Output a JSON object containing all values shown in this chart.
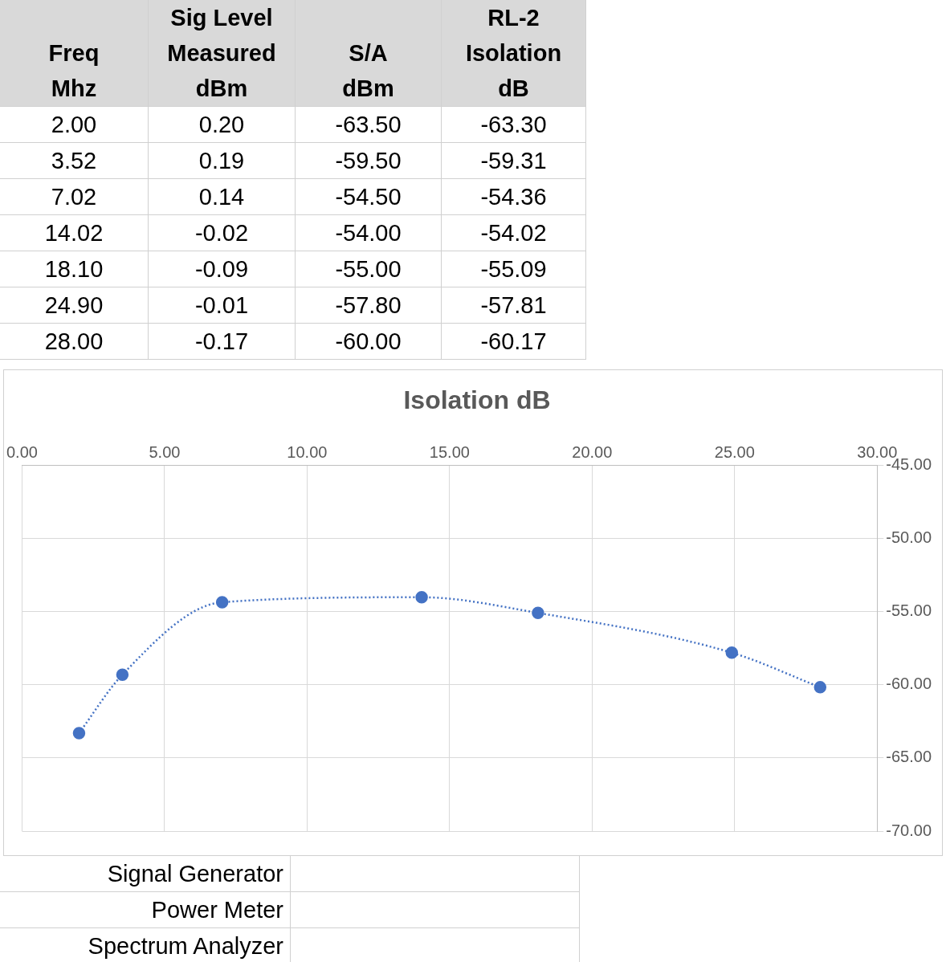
{
  "chart_data": [
    {
      "type": "other",
      "annotations": [
        "Freq\nMhz",
        "Sig Level\nMeasured\ndBm",
        "S/A\ndBm",
        "RL-2\nIsolation\ndB",
        "2.00",
        "0.20",
        "-63.50",
        "-63.30",
        "3.52",
        "0.19",
        "-59.50",
        "-59.31",
        "7.02",
        "0.14",
        "-54.50",
        "-54.36",
        "14.02",
        "-0.02",
        "-54.00",
        "-54.02",
        "18.10",
        "-0.09",
        "-55.00",
        "-55.09",
        "24.90",
        "-0.01",
        "-57.80",
        "-57.81",
        "28.00",
        "-0.17",
        "-60.00",
        "-60.17"
      ]
    },
    {
      "type": "line",
      "title": "Isolation dB",
      "x": [
        2,
        3.52,
        7.02,
        14.02,
        18.1,
        24.9,
        28
      ],
      "values": [
        -63.3,
        -59.31,
        -54.36,
        -54.02,
        -55.09,
        -57.81,
        -60.17
      ],
      "color": "#4472c4",
      "xlim": [
        0,
        30
      ],
      "xticks": [
        {
          "value": 0,
          "label": "0.00"
        },
        {
          "value": 5,
          "label": "5.00"
        },
        {
          "value": 10,
          "label": "10.00"
        },
        {
          "value": 15,
          "label": "15.00"
        },
        {
          "value": 20,
          "label": "20.00"
        },
        {
          "value": 25,
          "label": "25.00"
        },
        {
          "value": 30,
          "label": "30.00"
        }
      ],
      "ylim": [
        -70,
        -45
      ],
      "yticks": [
        {
          "value": -70,
          "label": "-70.00"
        },
        {
          "value": -65,
          "label": "-65.00"
        },
        {
          "value": -60,
          "label": "-60.00"
        },
        {
          "value": -55,
          "label": "-55.00"
        },
        {
          "value": -50,
          "label": "-50.00"
        },
        {
          "value": -45,
          "label": "-45.00"
        }
      ],
      "grid": true,
      "marker": "circle",
      "line_style": "dotted"
    },
    {
      "type": "other",
      "annotations": [
        "Signal Generator",
        "Power Meter",
        "Spectrum Analyzer"
      ]
    }
  ]
}
